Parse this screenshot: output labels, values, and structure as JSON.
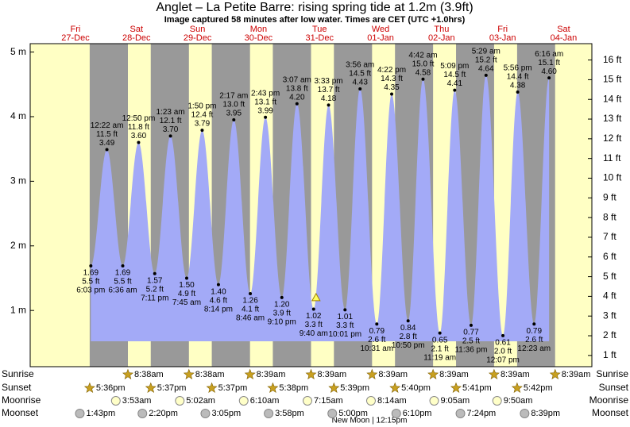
{
  "chart_data": {
    "type": "tide",
    "title": "Anglet – La Petite Barre: rising  spring tide at 1.2m (3.9ft)",
    "subtitle": "Image captured 58 minutes after low water. Times are CET (UTC +1.0hrs)",
    "xlim": [
      -5.8,
      215.1
    ],
    "ylim": [
      0.13,
      5.13
    ],
    "yticks": [
      {
        "value": 1,
        "label": "1 m"
      },
      {
        "value": 2,
        "label": "2 m"
      },
      {
        "value": 3,
        "label": "3 m"
      },
      {
        "value": 4,
        "label": "4 m"
      },
      {
        "value": 5,
        "label": "5 m"
      }
    ],
    "y2lim": [
      0.43,
      16.83
    ],
    "y2ticks": [
      {
        "value": 1,
        "label": "1 ft"
      },
      {
        "value": 2,
        "label": "2 ft"
      },
      {
        "value": 3,
        "label": "3 ft"
      },
      {
        "value": 4,
        "label": "4 ft"
      },
      {
        "value": 5,
        "label": "5 ft"
      },
      {
        "value": 6,
        "label": "6 ft"
      },
      {
        "value": 7,
        "label": "7 ft"
      },
      {
        "value": 8,
        "label": "8 ft"
      },
      {
        "value": 9,
        "label": "9 ft"
      },
      {
        "value": 10,
        "label": "10 ft"
      },
      {
        "value": 11,
        "label": "11 ft"
      },
      {
        "value": 12,
        "label": "12 ft"
      },
      {
        "value": 13,
        "label": "13 ft"
      },
      {
        "value": 14,
        "label": "14 ft"
      },
      {
        "value": 15,
        "label": "15 ft"
      },
      {
        "value": 16,
        "label": "16 ft"
      }
    ],
    "days": {
      "x": [
        12,
        36,
        60,
        84,
        108,
        132,
        156,
        180,
        204
      ],
      "names": [
        "Fri",
        "Sat",
        "Sun",
        "Mon",
        "Tue",
        "Wed",
        "Thu",
        "Fri",
        "Sat"
      ],
      "dates": [
        "27-Dec",
        "28-Dec",
        "29-Dec",
        "30-Dec",
        "31-Dec",
        "01-Jan",
        "02-Jan",
        "03-Jan",
        "04-Jan"
      ]
    },
    "color": "#a3aaf7",
    "tide": {
      "x": [
        18.05,
        24.37,
        30.6,
        36.83,
        43.18,
        49.38,
        55.75,
        61.83,
        68.23,
        74.28,
        80.77,
        86.72,
        93.17,
        99.12,
        105.67,
        111.55,
        118.02,
        123.93,
        130.52,
        136.37,
        142.83,
        148.7,
        155.32,
        161.15,
        167.6,
        173.48,
        180.12,
        185.93,
        192.38,
        198.27
      ],
      "values": [
        1.69,
        3.49,
        1.69,
        3.6,
        1.57,
        3.7,
        1.5,
        3.79,
        1.4,
        3.95,
        1.26,
        3.99,
        1.2,
        4.2,
        1.02,
        4.18,
        1.01,
        4.43,
        0.79,
        4.35,
        0.84,
        4.58,
        0.65,
        4.41,
        0.77,
        4.64,
        0.61,
        4.38,
        0.79,
        4.6
      ],
      "value_labels": [
        "1.69",
        "3.49",
        "1.69",
        "3.60",
        "1.57",
        "3.70",
        "1.50",
        "3.79",
        "1.40",
        "3.95",
        "1.26",
        "3.99",
        "1.20",
        "4.20",
        "1.02",
        "4.18",
        "1.01",
        "4.43",
        "0.79",
        "4.35",
        "0.84",
        "4.58",
        "0.65",
        "4.41",
        "0.77",
        "4.64",
        "0.61",
        "4.38",
        "0.79",
        "4.60"
      ],
      "feet_labels": [
        "5.5 ft",
        "11.5 ft",
        "5.5 ft",
        "11.8 ft",
        "5.2 ft",
        "12.1 ft",
        "4.9 ft",
        "12.4 ft",
        "4.6 ft",
        "13.0 ft",
        "4.1 ft",
        "13.1 ft",
        "3.9 ft",
        "13.8 ft",
        "3.3 ft",
        "13.7 ft",
        "3.3 ft",
        "14.5 ft",
        "2.6 ft",
        "14.3 ft",
        "2.8 ft",
        "15.0 ft",
        "2.1 ft",
        "14.5 ft",
        "2.5 ft",
        "15.2 ft",
        "2.0 ft",
        "14.4 ft",
        "2.6 ft",
        "15.1 ft"
      ],
      "time_labels": [
        "6:03 pm",
        "12:22 am",
        "6:36 am",
        "12:50 pm",
        "7:11 pm",
        "1:23 am",
        "7:45 am",
        "1:50 pm",
        "8:14 pm",
        "2:17 am",
        "8:46 am",
        "2:43 pm",
        "9:10 pm",
        "3:07 am",
        "9:40 am",
        "3:33 pm",
        "10:01 pm",
        "3:56 am",
        "10:31 am",
        "4:22 pm",
        "10:50 pm",
        "4:42 am",
        "11:19 am",
        "5:09 pm",
        "11:36 pm",
        "5:29 am",
        "12:07 pm",
        "5:56 pm",
        "12:23 am",
        "6:16 am"
      ]
    },
    "now": {
      "x": 106.63,
      "value": 1.2
    },
    "sunrise": {
      "name": "Sunrise",
      "x": [
        32.63,
        56.63,
        80.65,
        104.65,
        128.65,
        152.65,
        176.65,
        200.65
      ],
      "labels": [
        "8:38am",
        "8:38am",
        "8:39am",
        "8:39am",
        "8:39am",
        "8:39am",
        "8:39am",
        "8:39am"
      ]
    },
    "sunset": {
      "name": "Sunset",
      "x": [
        17.6,
        41.62,
        65.62,
        89.63,
        113.65,
        137.67,
        161.68,
        185.7
      ],
      "labels": [
        "5:36pm",
        "5:37pm",
        "5:37pm",
        "5:38pm",
        "5:39pm",
        "5:40pm",
        "5:41pm",
        "5:42pm"
      ]
    },
    "moonrise": {
      "name": "Moonrise",
      "x": [
        27.88,
        53.03,
        78.17,
        103.25,
        128.23,
        153.08,
        177.83
      ],
      "labels": [
        "3:53am",
        "5:02am",
        "6:10am",
        "7:15am",
        "8:14am",
        "9:05am",
        "9:50am"
      ]
    },
    "moonset": {
      "name": "Moonset",
      "x": [
        13.72,
        38.33,
        63.08,
        87.97,
        113,
        138.17,
        163.4,
        188.65
      ],
      "labels": [
        "1:43pm",
        "2:20pm",
        "3:05pm",
        "3:58pm",
        "5:00pm",
        "6:10pm",
        "7:24pm",
        "8:39pm"
      ]
    },
    "moon_phase": "New Moon | 12:15pm"
  }
}
